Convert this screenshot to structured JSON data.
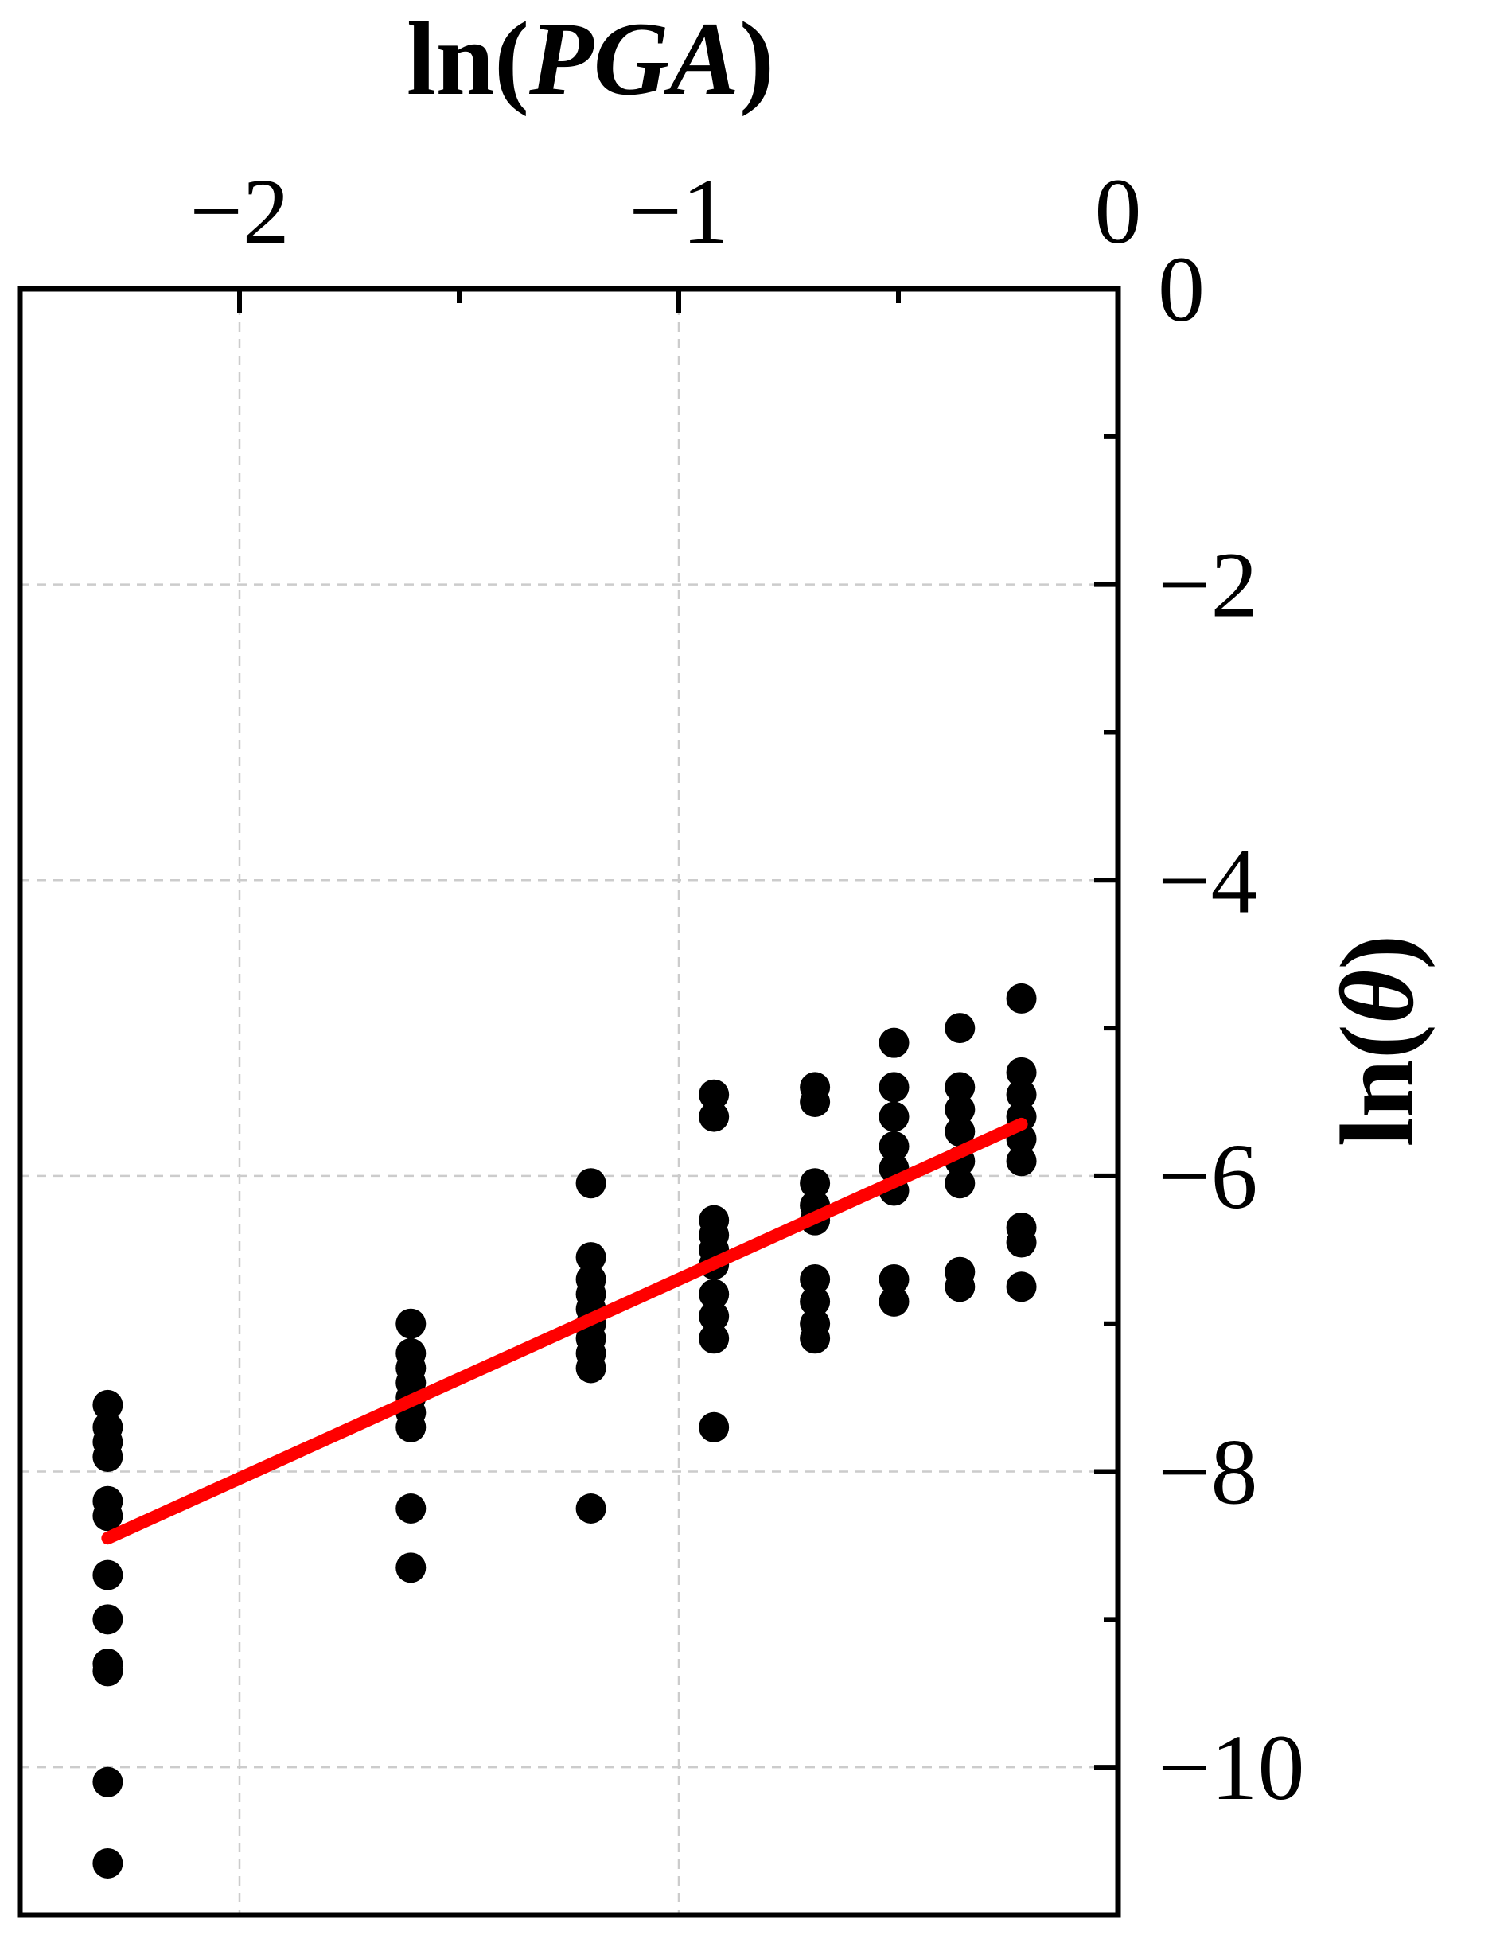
{
  "chart_data": {
    "type": "scatter",
    "title": "",
    "xlabel": {
      "prefix": "ln(",
      "italic": "PGA",
      "suffix": ")"
    },
    "ylabel": {
      "prefix": "ln(",
      "italic": "θ",
      "suffix": ")"
    },
    "x_axis_position": "top",
    "y_axis_position": "right",
    "xlim": [
      -2.5,
      0
    ],
    "ylim": [
      -11.0,
      0
    ],
    "x_ticks": [
      -2,
      -1,
      0
    ],
    "x_tick_labels": [
      "−2",
      "−1",
      "0"
    ],
    "x_minor_ticks": [
      -1.5,
      -0.5
    ],
    "y_ticks": [
      0,
      -2,
      -4,
      -6,
      -8,
      -10
    ],
    "y_tick_labels": [
      "0",
      "−2",
      "−4",
      "−6",
      "−8",
      "−10"
    ],
    "y_minor_ticks": [
      -1,
      -3,
      -5,
      -7,
      -9,
      -11
    ],
    "grid": true,
    "legend": "none",
    "series": [
      {
        "kind": "scatter",
        "color": "#000000",
        "points": [
          [
            -2.3,
            -7.55
          ],
          [
            -2.3,
            -7.7
          ],
          [
            -2.3,
            -7.8
          ],
          [
            -2.3,
            -7.9
          ],
          [
            -2.3,
            -8.2
          ],
          [
            -2.3,
            -8.3
          ],
          [
            -2.3,
            -8.7
          ],
          [
            -2.3,
            -9.0
          ],
          [
            -2.3,
            -9.3
          ],
          [
            -2.3,
            -9.35
          ],
          [
            -2.3,
            -10.1
          ],
          [
            -2.3,
            -10.65
          ],
          [
            -1.61,
            -7.0
          ],
          [
            -1.61,
            -7.2
          ],
          [
            -1.61,
            -7.3
          ],
          [
            -1.61,
            -7.4
          ],
          [
            -1.61,
            -7.5
          ],
          [
            -1.61,
            -7.6
          ],
          [
            -1.61,
            -7.7
          ],
          [
            -1.61,
            -8.25
          ],
          [
            -1.61,
            -8.65
          ],
          [
            -1.2,
            -6.05
          ],
          [
            -1.2,
            -6.55
          ],
          [
            -1.2,
            -6.7
          ],
          [
            -1.2,
            -6.8
          ],
          [
            -1.2,
            -6.9
          ],
          [
            -1.2,
            -7.0
          ],
          [
            -1.2,
            -7.1
          ],
          [
            -1.2,
            -7.2
          ],
          [
            -1.2,
            -7.3
          ],
          [
            -1.2,
            -8.25
          ],
          [
            -0.92,
            -5.45
          ],
          [
            -0.92,
            -5.6
          ],
          [
            -0.92,
            -6.3
          ],
          [
            -0.92,
            -6.4
          ],
          [
            -0.92,
            -6.5
          ],
          [
            -0.92,
            -6.6
          ],
          [
            -0.92,
            -6.8
          ],
          [
            -0.92,
            -6.95
          ],
          [
            -0.92,
            -7.1
          ],
          [
            -0.92,
            -7.7
          ],
          [
            -0.69,
            -5.4
          ],
          [
            -0.69,
            -5.5
          ],
          [
            -0.69,
            -6.05
          ],
          [
            -0.69,
            -6.2
          ],
          [
            -0.69,
            -6.3
          ],
          [
            -0.69,
            -6.7
          ],
          [
            -0.69,
            -6.85
          ],
          [
            -0.69,
            -7.0
          ],
          [
            -0.69,
            -7.1
          ],
          [
            -0.51,
            -5.1
          ],
          [
            -0.51,
            -5.4
          ],
          [
            -0.51,
            -5.6
          ],
          [
            -0.51,
            -5.8
          ],
          [
            -0.51,
            -5.95
          ],
          [
            -0.51,
            -6.1
          ],
          [
            -0.51,
            -6.7
          ],
          [
            -0.51,
            -6.85
          ],
          [
            -0.36,
            -5.0
          ],
          [
            -0.36,
            -5.4
          ],
          [
            -0.36,
            -5.55
          ],
          [
            -0.36,
            -5.7
          ],
          [
            -0.36,
            -5.9
          ],
          [
            -0.36,
            -6.05
          ],
          [
            -0.36,
            -6.65
          ],
          [
            -0.36,
            -6.75
          ],
          [
            -0.22,
            -4.8
          ],
          [
            -0.22,
            -5.3
          ],
          [
            -0.22,
            -5.45
          ],
          [
            -0.22,
            -5.6
          ],
          [
            -0.22,
            -5.75
          ],
          [
            -0.22,
            -5.9
          ],
          [
            -0.22,
            -6.35
          ],
          [
            -0.22,
            -6.45
          ],
          [
            -0.22,
            -6.75
          ]
        ]
      },
      {
        "kind": "line",
        "color": "#ff0000",
        "x": [
          -2.3,
          -0.22
        ],
        "y": [
          -8.45,
          -5.65
        ]
      }
    ]
  }
}
